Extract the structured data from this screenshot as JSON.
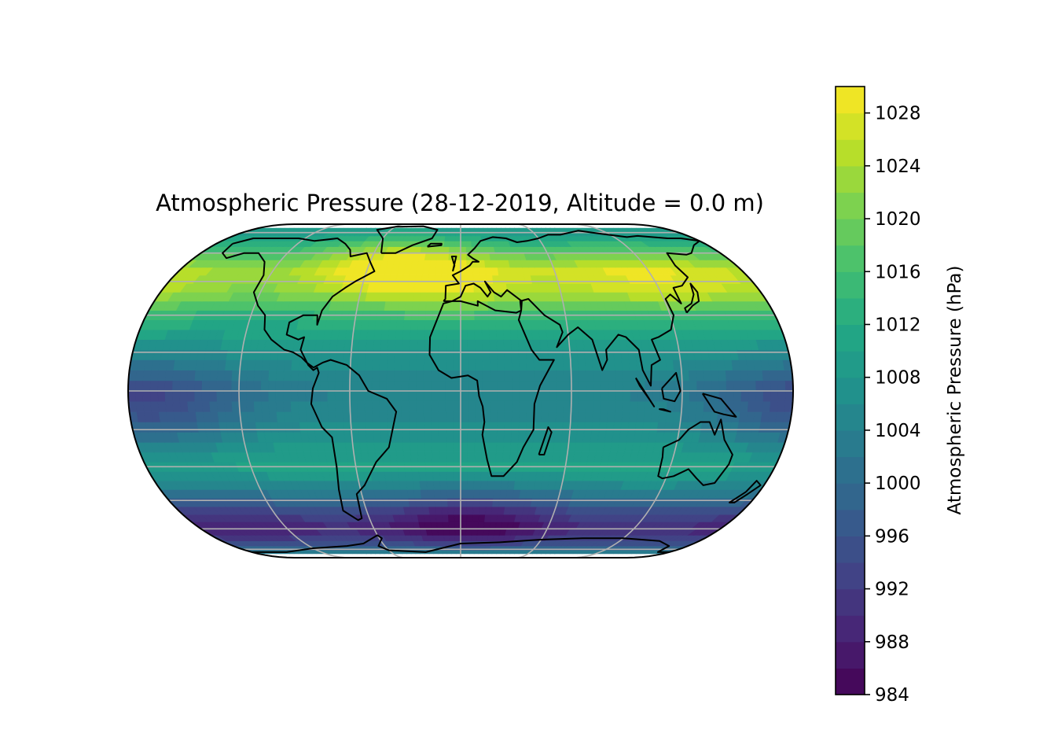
{
  "title": "Atmospheric Pressure (28-12-2019, Altitude = 0.0 m)",
  "map": {
    "projection": "Eckert IV (global, central meridian 0°)",
    "gridlines": true,
    "coastlines": true,
    "gridline_color": "#b0b0b0",
    "coastline_color": "#000000"
  },
  "colorbar": {
    "label": "Atmospheric Pressure (hPa)",
    "colormap": "viridis",
    "min": 984,
    "max": 1030,
    "level_step": 2,
    "ticks": [
      "984",
      "988",
      "992",
      "996",
      "1000",
      "1004",
      "1008",
      "1012",
      "1016",
      "1020",
      "1024",
      "1028"
    ],
    "tick_values": [
      984,
      988,
      992,
      996,
      1000,
      1004,
      1008,
      1012,
      1016,
      1020,
      1024,
      1028
    ]
  },
  "field_features": [
    {
      "name": "high",
      "lat": 55,
      "lon": -45,
      "value": 1029
    },
    {
      "name": "high",
      "lat": 48,
      "lon": 100,
      "value": 1027
    },
    {
      "name": "high",
      "lat": 45,
      "lon": 0,
      "value": 1026
    },
    {
      "name": "high",
      "lat": 45,
      "lon": 165,
      "value": 1025
    },
    {
      "name": "low",
      "lat": -55,
      "lon": 5,
      "value": 985
    },
    {
      "name": "low",
      "lat": -55,
      "lon": -150,
      "value": 990
    },
    {
      "name": "low",
      "lat": -5,
      "lon": -170,
      "value": 994
    }
  ]
}
